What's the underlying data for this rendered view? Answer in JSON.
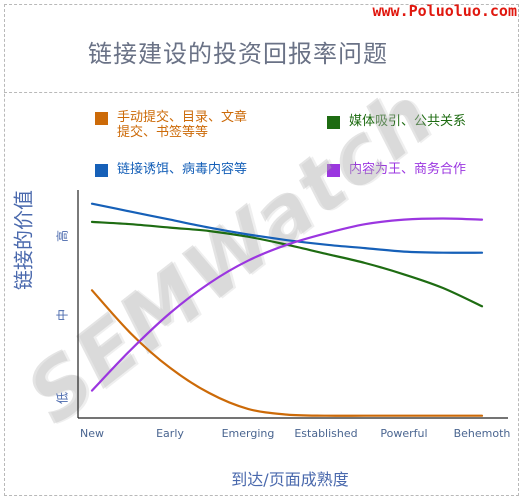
{
  "site": "www.Poluoluo.com",
  "watermark": "SEMWatch",
  "colors": {
    "orange": "#cc6a08",
    "green": "#1e6c12",
    "blue": "#1660b8",
    "purple": "#9b36e0",
    "axis": "#222222",
    "title": "#6a7286",
    "label": "#4a69ad",
    "watermark": "#bcbcbc"
  },
  "chart_data": {
    "type": "line",
    "title": "链接建设的投资回报率问题",
    "xlabel": "到达/页面成熟度",
    "ylabel": "链接的价值",
    "categories": [
      "New",
      "Early",
      "Emerging",
      "Established",
      "Powerful",
      "Behemoth"
    ],
    "y_levels": [
      {
        "label": "低",
        "value": 1
      },
      {
        "label": "中",
        "value": 5
      },
      {
        "label": "高",
        "value": 9
      }
    ],
    "ylim": [
      0,
      10
    ],
    "legend": [
      {
        "name": "手动提交、目录、文章\n提交、书签等等",
        "color": "#cc6a08"
      },
      {
        "name": "媒体吸引、公共关系",
        "color": "#1e6c12"
      },
      {
        "name": "链接诱饵、病毒内容等",
        "color": "#1660b8"
      },
      {
        "name": "内容为王、商务合作",
        "color": "#9b36e0"
      }
    ],
    "series": [
      {
        "name": "手动提交、目录、文章\n提交、书签等等",
        "color": "#cc6a08",
        "x": [
          0,
          0.5,
          1,
          1.5,
          2,
          2.5,
          3,
          3.5,
          4,
          4.5,
          5
        ],
        "values": [
          5.6,
          3.7,
          2.2,
          1.1,
          0.4,
          0.15,
          0.1,
          0.1,
          0.1,
          0.1,
          0.1
        ]
      },
      {
        "name": "媒体吸引、公共关系",
        "color": "#1e6c12",
        "x": [
          0,
          0.5,
          1,
          1.5,
          2,
          2.5,
          3,
          3.5,
          4,
          4.5,
          5
        ],
        "values": [
          8.6,
          8.5,
          8.35,
          8.2,
          7.95,
          7.6,
          7.2,
          6.8,
          6.3,
          5.7,
          4.9
        ]
      },
      {
        "name": "链接诱饵、病毒内容等",
        "color": "#1660b8",
        "x": [
          0,
          0.5,
          1,
          1.5,
          2,
          2.5,
          3,
          3.5,
          4,
          4.5,
          5
        ],
        "values": [
          9.4,
          9.05,
          8.7,
          8.35,
          8.05,
          7.8,
          7.6,
          7.45,
          7.3,
          7.25,
          7.25
        ]
      },
      {
        "name": "内容为王、商务合作",
        "color": "#9b36e0",
        "x": [
          0,
          0.5,
          1,
          1.5,
          2,
          2.5,
          3,
          3.5,
          4,
          4.5,
          5
        ],
        "values": [
          1.2,
          3.0,
          4.6,
          5.9,
          6.9,
          7.6,
          8.1,
          8.5,
          8.7,
          8.75,
          8.7
        ]
      }
    ]
  }
}
